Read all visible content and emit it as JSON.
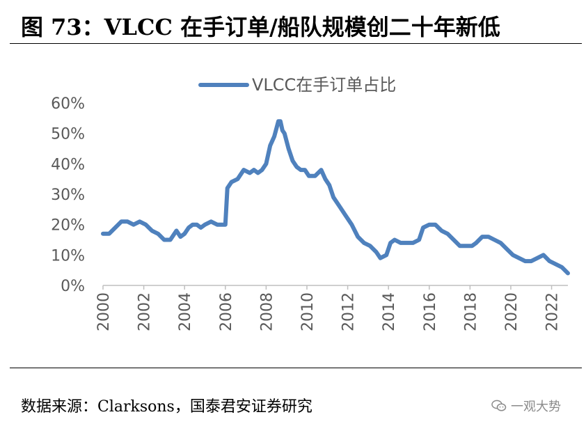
{
  "figure": {
    "title": "图 73：VLCC 在手订单/船队规模创二十年新低",
    "source": "数据来源：Clarksons，国泰君安证券研究",
    "watermark": "一观大势"
  },
  "colors": {
    "series": "#4f81bd",
    "axis": "#bfbfbf",
    "tick_text": "#595959"
  },
  "chart_data": {
    "type": "line",
    "title": "",
    "xlabel": "",
    "ylabel": "",
    "legend": "top-center",
    "grid": false,
    "xlim": [
      2000,
      2022.8
    ],
    "ylim": [
      0,
      0.6
    ],
    "x_ticks": [
      "2000",
      "2002",
      "2004",
      "2006",
      "2008",
      "2010",
      "2012",
      "2014",
      "2016",
      "2018",
      "2020",
      "2022"
    ],
    "y_ticks": [
      "0%",
      "10%",
      "20%",
      "30%",
      "40%",
      "50%",
      "60%"
    ],
    "series": [
      {
        "name": "VLCC在手订单占比",
        "x": [
          2000.0,
          2000.3,
          2000.6,
          2000.9,
          2001.2,
          2001.5,
          2001.8,
          2002.1,
          2002.4,
          2002.7,
          2003.0,
          2003.3,
          2003.6,
          2003.8,
          2004.0,
          2004.2,
          2004.4,
          2004.6,
          2004.8,
          2005.0,
          2005.3,
          2005.6,
          2005.8,
          2006.0,
          2006.1,
          2006.3,
          2006.6,
          2006.9,
          2007.2,
          2007.4,
          2007.6,
          2007.8,
          2008.0,
          2008.2,
          2008.4,
          2008.6,
          2008.7,
          2008.8,
          2008.9,
          2009.1,
          2009.3,
          2009.5,
          2009.7,
          2009.9,
          2010.1,
          2010.4,
          2010.7,
          2010.9,
          2011.1,
          2011.3,
          2011.6,
          2011.9,
          2012.2,
          2012.5,
          2012.8,
          2013.1,
          2013.4,
          2013.6,
          2013.9,
          2014.1,
          2014.3,
          2014.6,
          2014.9,
          2015.2,
          2015.5,
          2015.7,
          2016.0,
          2016.3,
          2016.6,
          2016.9,
          2017.2,
          2017.5,
          2017.8,
          2018.1,
          2018.3,
          2018.6,
          2018.9,
          2019.2,
          2019.5,
          2019.8,
          2020.1,
          2020.4,
          2020.7,
          2021.0,
          2021.3,
          2021.6,
          2021.9,
          2022.2,
          2022.5,
          2022.8
        ],
        "y": [
          0.17,
          0.17,
          0.19,
          0.21,
          0.21,
          0.2,
          0.21,
          0.2,
          0.18,
          0.17,
          0.15,
          0.15,
          0.18,
          0.16,
          0.17,
          0.19,
          0.2,
          0.2,
          0.19,
          0.2,
          0.21,
          0.2,
          0.2,
          0.2,
          0.32,
          0.34,
          0.35,
          0.38,
          0.37,
          0.38,
          0.37,
          0.38,
          0.4,
          0.46,
          0.49,
          0.54,
          0.54,
          0.51,
          0.5,
          0.45,
          0.41,
          0.39,
          0.38,
          0.38,
          0.36,
          0.36,
          0.38,
          0.35,
          0.33,
          0.29,
          0.26,
          0.23,
          0.2,
          0.16,
          0.14,
          0.13,
          0.11,
          0.09,
          0.1,
          0.14,
          0.15,
          0.14,
          0.14,
          0.14,
          0.15,
          0.19,
          0.2,
          0.2,
          0.18,
          0.17,
          0.15,
          0.13,
          0.13,
          0.13,
          0.14,
          0.16,
          0.16,
          0.15,
          0.14,
          0.12,
          0.1,
          0.09,
          0.08,
          0.08,
          0.09,
          0.1,
          0.08,
          0.07,
          0.06,
          0.04
        ]
      }
    ]
  }
}
